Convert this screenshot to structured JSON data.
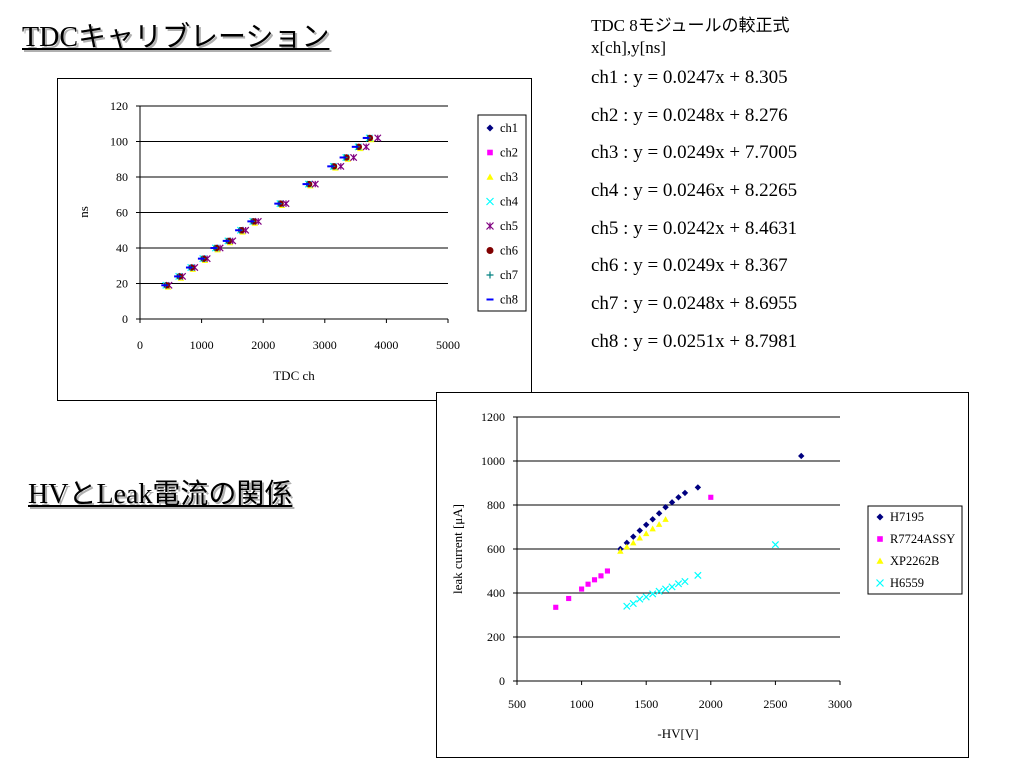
{
  "titles": {
    "tdc": "TDCキャリブレーション",
    "hv": "HVとLeak電流の関係"
  },
  "formulas": {
    "header": "TDC   8モジュールの較正式",
    "units": "x[ch],y[ns]",
    "items": [
      "ch1 : y = 0.0247x + 8.305",
      "ch2 :  y = 0.0248x + 8.276",
      "ch3 :  y = 0.0249x + 7.7005",
      "ch4 :  y = 0.0246x + 8.2265",
      "ch5 :  y = 0.0242x + 8.4631",
      "ch6 :  y = 0.0249x + 8.367",
      "ch7 :  y = 0.0248x + 8.6955",
      "ch8 :  y = 0.0251x + 8.7981"
    ]
  },
  "chart_data": [
    {
      "type": "scatter",
      "title": "",
      "xlabel": "TDC ch",
      "ylabel": "ns",
      "xlim": [
        0,
        5000
      ],
      "ylim": [
        0,
        120
      ],
      "xticks": [
        0,
        1000,
        2000,
        3000,
        4000,
        5000
      ],
      "yticks": [
        0,
        20,
        40,
        60,
        80,
        100,
        120
      ],
      "grid": "horizontal",
      "legend": "right",
      "series": [
        {
          "name": "ch1",
          "marker": "diamond",
          "color": "#000080",
          "x": [
            430,
            640,
            834,
            1030,
            1236,
            1437,
            1640,
            1840,
            2280,
            2744,
            3148,
            3350,
            3550,
            3730
          ],
          "y": [
            19,
            24,
            29,
            34,
            40,
            44,
            50,
            55,
            65,
            76,
            86,
            91,
            97,
            102
          ]
        },
        {
          "name": "ch2",
          "marker": "square",
          "color": "#ff00ff",
          "x": [
            435,
            645,
            838,
            1034,
            1240,
            1440,
            1645,
            1845,
            2285,
            2748,
            3152,
            3355,
            3555,
            3735
          ],
          "y": [
            19,
            24,
            29,
            34,
            40,
            44,
            50,
            55,
            65,
            76,
            86,
            91,
            97,
            102
          ]
        },
        {
          "name": "ch3",
          "marker": "triangle",
          "color": "#ffff00",
          "x": [
            455,
            665,
            858,
            1054,
            1260,
            1460,
            1665,
            1865,
            2305,
            2768,
            3172,
            3375,
            3575,
            3755
          ],
          "y": [
            18,
            23,
            28,
            33,
            39,
            43,
            49,
            54,
            64,
            75,
            85,
            90,
            96,
            101
          ]
        },
        {
          "name": "ch4",
          "marker": "x",
          "color": "#00ffff",
          "x": [
            420,
            630,
            825,
            1020,
            1226,
            1428,
            1632,
            1832,
            2272,
            2735,
            3138,
            3342,
            3542,
            3722
          ],
          "y": [
            19,
            24,
            29,
            34,
            40,
            44,
            50,
            55,
            65,
            76,
            86,
            91,
            97,
            102
          ]
        },
        {
          "name": "ch5",
          "marker": "star",
          "color": "#800080",
          "x": [
            470,
            690,
            888,
            1090,
            1300,
            1505,
            1715,
            1920,
            2370,
            2845,
            3260,
            3468,
            3672,
            3860
          ],
          "y": [
            19,
            24,
            29,
            34,
            40,
            44,
            50,
            55,
            65,
            76,
            86,
            91,
            97,
            102
          ]
        },
        {
          "name": "ch6",
          "marker": "circle",
          "color": "#800000",
          "x": [
            432,
            642,
            836,
            1032,
            1238,
            1438,
            1642,
            1842,
            2282,
            2745,
            3150,
            3352,
            3552,
            3732
          ],
          "y": [
            19,
            24,
            29,
            34,
            40,
            44,
            50,
            55,
            65,
            76,
            86,
            91,
            97,
            102
          ]
        },
        {
          "name": "ch7",
          "marker": "plus",
          "color": "#008080",
          "x": [
            412,
            622,
            815,
            1010,
            1215,
            1415,
            1618,
            1818,
            2255,
            2716,
            3118,
            3320,
            3518,
            3698
          ],
          "y": [
            19,
            24,
            29,
            34,
            40,
            44,
            50,
            55,
            65,
            76,
            86,
            91,
            97,
            102
          ]
        },
        {
          "name": "ch8",
          "marker": "dash",
          "color": "#0000ff",
          "x": [
            398,
            606,
            798,
            992,
            1196,
            1395,
            1596,
            1795,
            2232,
            2690,
            3092,
            3292,
            3490,
            3668
          ],
          "y": [
            19,
            24,
            29,
            34,
            40,
            44,
            50,
            55,
            65,
            76,
            86,
            91,
            97,
            102
          ]
        }
      ]
    },
    {
      "type": "scatter",
      "title": "",
      "xlabel": "-HV[V]",
      "ylabel": "leak current [μA]",
      "xlim": [
        500,
        3000
      ],
      "ylim": [
        0,
        1200
      ],
      "xticks": [
        500,
        1000,
        1500,
        2000,
        2500,
        3000
      ],
      "yticks": [
        0,
        200,
        400,
        600,
        800,
        1000,
        1200
      ],
      "grid": "horizontal",
      "legend": "right",
      "series": [
        {
          "name": "H7195",
          "marker": "diamond",
          "color": "#000080",
          "x": [
            1300,
            1350,
            1400,
            1450,
            1500,
            1550,
            1600,
            1650,
            1700,
            1750,
            1800,
            1900,
            2700
          ],
          "y": [
            600,
            628,
            656,
            684,
            710,
            735,
            762,
            790,
            812,
            835,
            855,
            880,
            1023
          ]
        },
        {
          "name": "R7724ASSY",
          "marker": "square",
          "color": "#ff00ff",
          "x": [
            800,
            900,
            1000,
            1050,
            1100,
            1150,
            1200,
            2000
          ],
          "y": [
            335,
            375,
            418,
            440,
            460,
            478,
            500,
            835
          ]
        },
        {
          "name": "XP2262B",
          "marker": "triangle",
          "color": "#ffff00",
          "x": [
            1300,
            1350,
            1400,
            1450,
            1500,
            1550,
            1600,
            1650
          ],
          "y": [
            590,
            610,
            628,
            650,
            670,
            692,
            712,
            735
          ]
        },
        {
          "name": "H6559",
          "marker": "x",
          "color": "#00ffff",
          "x": [
            1350,
            1400,
            1450,
            1500,
            1550,
            1600,
            1650,
            1700,
            1750,
            1800,
            1900,
            2500
          ],
          "y": [
            340,
            352,
            372,
            382,
            396,
            408,
            418,
            428,
            442,
            452,
            480,
            620
          ]
        }
      ]
    }
  ]
}
